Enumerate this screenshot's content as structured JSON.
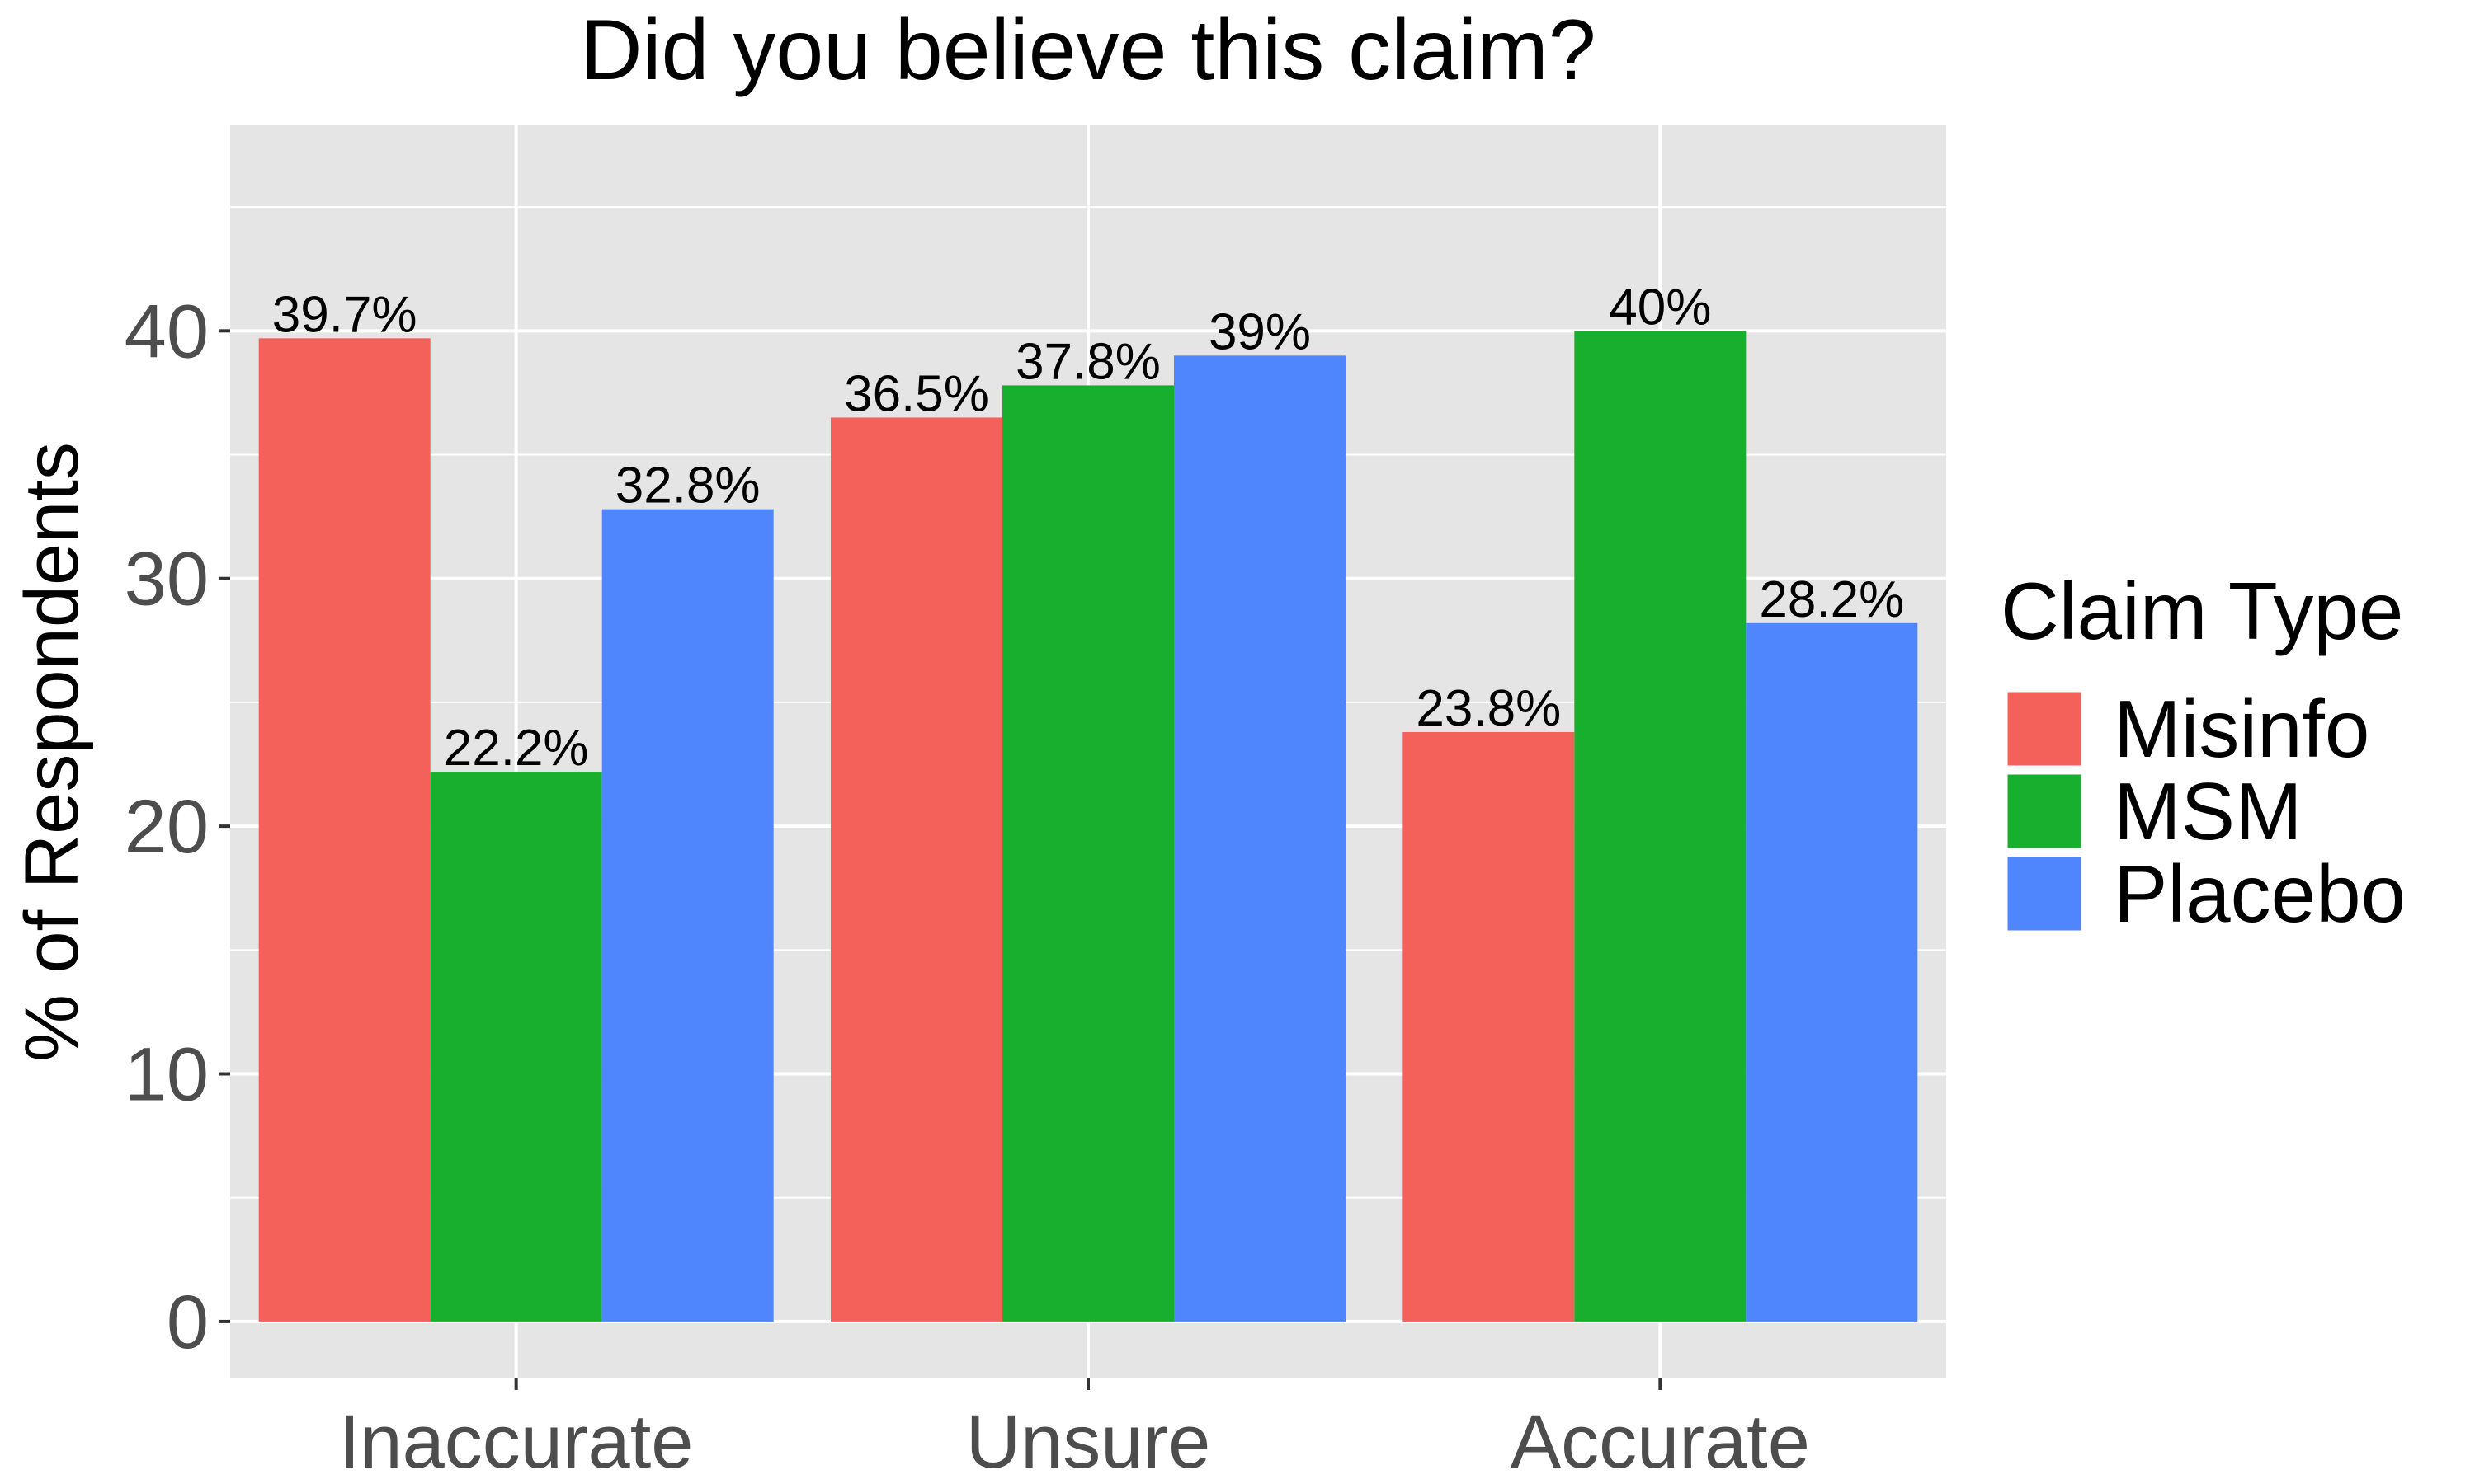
{
  "chart_data": {
    "type": "bar",
    "title": "Did you believe this claim?",
    "xlabel": "",
    "ylabel": "% of Respondents",
    "categories": [
      "Inaccurate",
      "Unsure",
      "Accurate"
    ],
    "ylim": [
      -2.3,
      48.3
    ],
    "yticks": [
      0,
      10,
      20,
      30,
      40
    ],
    "grid": true,
    "legend": {
      "title": "Claim Type",
      "position": "right"
    },
    "series": [
      {
        "name": "Misinfo",
        "color": "#F3615A",
        "values": [
          39.7,
          36.5,
          23.8
        ],
        "labels": [
          "39.7%",
          "36.5%",
          "23.8%"
        ]
      },
      {
        "name": "MSM",
        "color": "#19AF2E",
        "values": [
          22.2,
          37.8,
          40
        ],
        "labels": [
          "22.2%",
          "37.8%",
          "40%"
        ]
      },
      {
        "name": "Placebo",
        "color": "#4F86FE",
        "values": [
          32.8,
          39,
          28.2
        ],
        "labels": [
          "32.8%",
          "39%",
          "28.2%"
        ]
      }
    ],
    "panel_background": "#E5E5E5",
    "gridline_color": "#FFFFFF"
  }
}
